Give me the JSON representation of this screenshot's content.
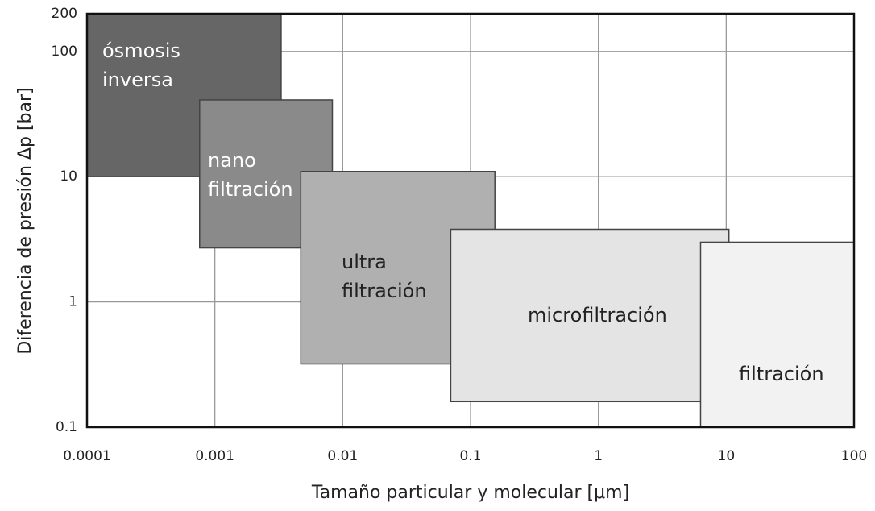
{
  "chart_data": {
    "type": "region",
    "xlabel": "Tamaño particular y molecular  [μm]",
    "ylabel": "Diferencia de presión  Δp  [bar]",
    "xlog": true,
    "ylog": true,
    "grid": true,
    "xlim": [
      0.0001,
      100
    ],
    "ylim": [
      0.1,
      200
    ],
    "xticks": [
      0.0001,
      0.001,
      0.01,
      0.1,
      1,
      10,
      100
    ],
    "yticks": [
      0.1,
      1,
      10,
      100,
      200
    ],
    "series": [
      {
        "name": [
          "ósmosis",
          "inversa"
        ],
        "color": "#666666",
        "text_color": "#ffffff",
        "x": [
          0.0001,
          0.0033
        ],
        "y": [
          10,
          200
        ]
      },
      {
        "name": [
          "nano",
          "filtración"
        ],
        "color": "#8a8a8a",
        "text_color": "#ffffff",
        "x": [
          0.00076,
          0.0083
        ],
        "y": [
          2.7,
          41
        ]
      },
      {
        "name": [
          "ultra",
          "filtración"
        ],
        "color": "#b0b0b0",
        "text_color": "#222222",
        "x": [
          0.0047,
          0.155
        ],
        "y": [
          0.32,
          11
        ]
      },
      {
        "name": [
          "microfiltración"
        ],
        "color": "#e4e4e4",
        "text_color": "#222222",
        "x": [
          0.07,
          10.5
        ],
        "y": [
          0.16,
          3.8
        ]
      },
      {
        "name": [
          "filtración"
        ],
        "color": "#f2f2f2",
        "text_color": "#222222",
        "x": [
          6.3,
          100
        ],
        "y": [
          0.1,
          3
        ]
      }
    ]
  }
}
